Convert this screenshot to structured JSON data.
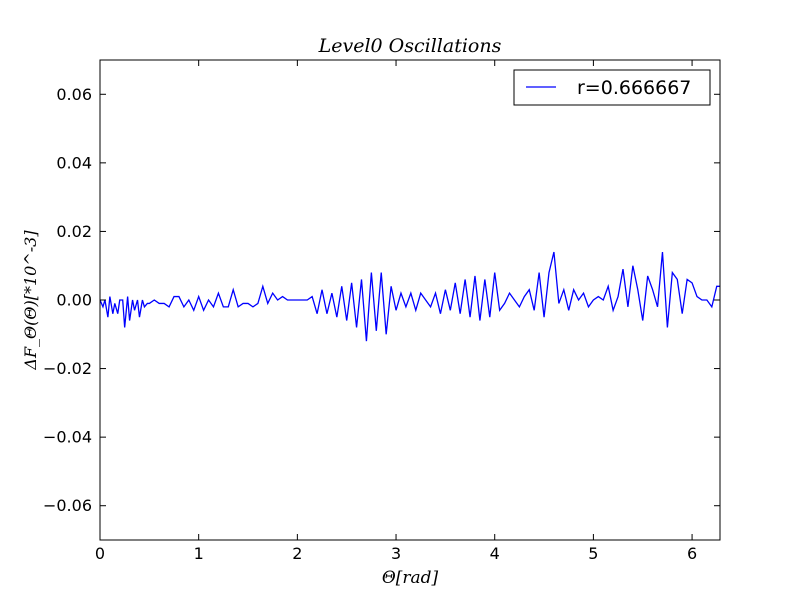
{
  "chart_data": {
    "type": "line",
    "title": "Level0 Oscillations",
    "xlabel": "Θ[rad]",
    "ylabel": "ΔF_Θ(Θ)[*10^-3]",
    "xlim": [
      0,
      6.283
    ],
    "ylim": [
      -0.07,
      0.07
    ],
    "xticks": [
      0,
      1,
      2,
      3,
      4,
      5,
      6
    ],
    "yticks": [
      -0.06,
      -0.04,
      -0.02,
      0.0,
      0.02,
      0.04,
      0.06
    ],
    "xtick_labels": [
      "0",
      "1",
      "2",
      "3",
      "4",
      "5",
      "6"
    ],
    "ytick_labels": [
      "−0.06",
      "−0.04",
      "−0.02",
      "0.00",
      "0.02",
      "0.04",
      "0.06"
    ],
    "grid": false,
    "legend_position": "top-right",
    "series": [
      {
        "name": "r=0.666667",
        "color": "#0000ff",
        "x": [
          0.0,
          0.03,
          0.05,
          0.08,
          0.1,
          0.13,
          0.15,
          0.18,
          0.2,
          0.23,
          0.25,
          0.28,
          0.3,
          0.33,
          0.35,
          0.38,
          0.4,
          0.43,
          0.45,
          0.48,
          0.5,
          0.55,
          0.6,
          0.65,
          0.7,
          0.75,
          0.8,
          0.85,
          0.9,
          0.95,
          1.0,
          1.05,
          1.1,
          1.15,
          1.2,
          1.25,
          1.3,
          1.35,
          1.4,
          1.45,
          1.5,
          1.55,
          1.6,
          1.65,
          1.7,
          1.75,
          1.8,
          1.85,
          1.9,
          1.95,
          2.0,
          2.05,
          2.1,
          2.15,
          2.2,
          2.25,
          2.3,
          2.35,
          2.4,
          2.45,
          2.5,
          2.55,
          2.6,
          2.65,
          2.7,
          2.75,
          2.8,
          2.85,
          2.9,
          2.95,
          3.0,
          3.05,
          3.1,
          3.15,
          3.2,
          3.25,
          3.3,
          3.35,
          3.4,
          3.45,
          3.5,
          3.55,
          3.6,
          3.65,
          3.7,
          3.75,
          3.8,
          3.85,
          3.9,
          3.95,
          4.0,
          4.05,
          4.1,
          4.15,
          4.2,
          4.25,
          4.3,
          4.35,
          4.4,
          4.45,
          4.5,
          4.55,
          4.6,
          4.65,
          4.7,
          4.75,
          4.8,
          4.85,
          4.9,
          4.95,
          5.0,
          5.05,
          5.1,
          5.15,
          5.2,
          5.25,
          5.3,
          5.35,
          5.4,
          5.45,
          5.5,
          5.55,
          5.6,
          5.65,
          5.7,
          5.75,
          5.8,
          5.85,
          5.9,
          5.95,
          6.0,
          6.05,
          6.1,
          6.15,
          6.2,
          6.25,
          6.28
        ],
        "y": [
          0.0,
          -0.002,
          0.0,
          -0.005,
          0.001,
          -0.004,
          -0.001,
          -0.004,
          0.0,
          0.0,
          -0.008,
          0.001,
          -0.006,
          0.0,
          -0.003,
          0.0,
          -0.005,
          0.0,
          -0.002,
          -0.001,
          -0.001,
          0.0,
          -0.001,
          -0.001,
          -0.002,
          0.001,
          0.001,
          -0.002,
          0.0,
          -0.003,
          0.001,
          -0.003,
          0.0,
          -0.002,
          0.002,
          -0.002,
          -0.002,
          0.003,
          -0.002,
          -0.001,
          -0.001,
          -0.002,
          -0.001,
          0.004,
          -0.001,
          0.002,
          0.0,
          0.001,
          0.0,
          0.0,
          0.0,
          0.0,
          0.0,
          0.001,
          -0.004,
          0.003,
          -0.004,
          0.002,
          -0.005,
          0.004,
          -0.006,
          0.005,
          -0.008,
          0.006,
          -0.012,
          0.008,
          -0.009,
          0.008,
          -0.01,
          0.004,
          -0.003,
          0.002,
          -0.002,
          0.002,
          -0.003,
          0.002,
          0.0,
          -0.002,
          0.002,
          -0.004,
          0.003,
          -0.003,
          0.005,
          -0.004,
          0.006,
          -0.005,
          0.007,
          -0.006,
          0.006,
          -0.005,
          0.008,
          -0.003,
          -0.001,
          0.002,
          0.0,
          -0.002,
          0.001,
          0.003,
          -0.003,
          0.008,
          -0.005,
          0.008,
          0.014,
          -0.001,
          0.003,
          -0.003,
          0.003,
          0.0,
          0.002,
          -0.002,
          0.0,
          0.001,
          0.0,
          0.004,
          -0.003,
          0.001,
          0.009,
          -0.002,
          0.01,
          0.003,
          -0.006,
          0.007,
          0.003,
          -0.002,
          0.014,
          -0.008,
          0.008,
          0.006,
          -0.004,
          0.006,
          0.005,
          0.001,
          0.0,
          0.0,
          -0.002,
          0.004,
          0.004
        ]
      }
    ]
  }
}
